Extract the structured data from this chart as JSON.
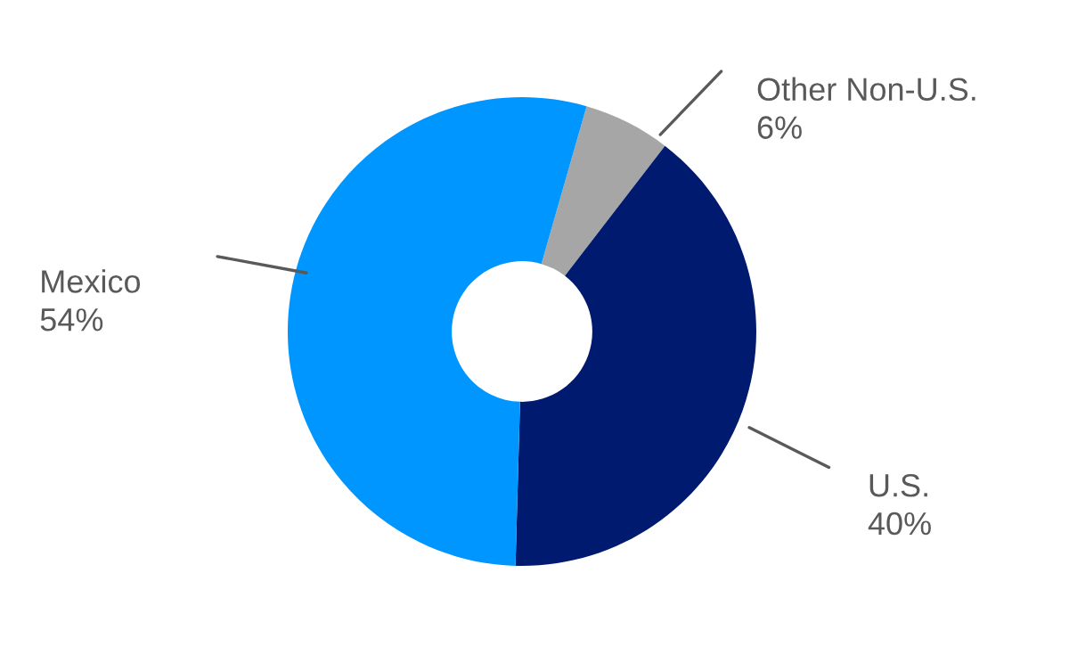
{
  "chart_data": {
    "type": "donut",
    "categories": [
      "Other Non-U.S.",
      "U.S.",
      "Mexico"
    ],
    "values": [
      6,
      40,
      54
    ],
    "colors": [
      "#a6a6a6",
      "#001a70",
      "#0096ff"
    ],
    "value_labels": [
      "6%",
      "40%",
      "54%"
    ],
    "legend": false
  }
}
